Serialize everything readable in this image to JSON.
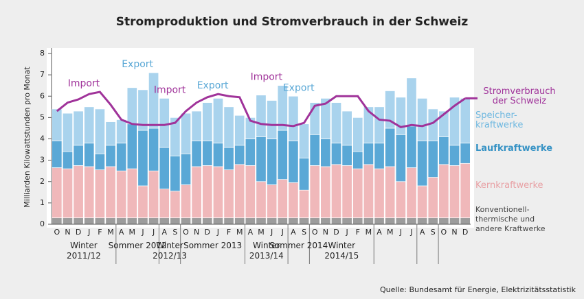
{
  "chart_data": {
    "type": "bar",
    "stacked": true,
    "title": "Stromproduktion und Stromverbrauch in der Schweiz",
    "y_label": "Milliarden Kilowattstunden pro Monat",
    "source": "Quelle: Bundesamt für Energie, Elektrizitätsstatistik",
    "ylim": [
      0,
      8
    ],
    "yticks": [
      0,
      1,
      2,
      3,
      4,
      5,
      6,
      7,
      8
    ],
    "categories": [
      "O",
      "N",
      "D",
      "J",
      "F",
      "M",
      "A",
      "M",
      "J",
      "J",
      "A",
      "S",
      "O",
      "N",
      "D",
      "J",
      "F",
      "M",
      "A",
      "M",
      "J",
      "J",
      "A",
      "S",
      "O",
      "N",
      "D",
      "J",
      "F",
      "M",
      "A",
      "M",
      "J",
      "J",
      "A",
      "S",
      "O",
      "N",
      "D"
    ],
    "groups": [
      "Winter 2011/12",
      "Sommer 2012",
      "Winter 2012/13",
      "Sommer 2013",
      "Winter 2013/14",
      "Sommer 2014",
      "Winter 2014/15"
    ],
    "annotations": [
      "Import",
      "Export",
      "Import",
      "Export",
      "Import",
      "Export"
    ],
    "series": [
      {
        "name": "Konventionell-thermische und andere Kraftwerke",
        "color": "#9c9c9c",
        "values": [
          0.3,
          0.3,
          0.3,
          0.3,
          0.3,
          0.3,
          0.3,
          0.3,
          0.3,
          0.3,
          0.3,
          0.3,
          0.3,
          0.3,
          0.3,
          0.3,
          0.3,
          0.3,
          0.3,
          0.3,
          0.3,
          0.3,
          0.3,
          0.3,
          0.3,
          0.3,
          0.3,
          0.3,
          0.3,
          0.3,
          0.3,
          0.3,
          0.3,
          0.3,
          0.3,
          0.3,
          0.3,
          0.3,
          0.3
        ]
      },
      {
        "name": "Kernkraftwerke",
        "color": "#f0b8ba",
        "values": [
          2.35,
          2.3,
          2.45,
          2.4,
          2.25,
          2.4,
          2.2,
          2.3,
          1.5,
          2.2,
          1.35,
          1.25,
          1.55,
          2.4,
          2.45,
          2.4,
          2.25,
          2.5,
          2.45,
          1.7,
          1.55,
          1.8,
          1.65,
          1.3,
          2.45,
          2.4,
          2.5,
          2.45,
          2.3,
          2.5,
          2.3,
          2.4,
          1.7,
          2.35,
          1.5,
          1.9,
          2.5,
          2.45,
          2.55
        ]
      },
      {
        "name": "Laufkraftwerke",
        "color": "#5aa8d6",
        "values": [
          1.25,
          0.8,
          0.95,
          1.1,
          0.75,
          1.0,
          1.3,
          2.1,
          2.6,
          2.0,
          1.95,
          1.65,
          1.45,
          1.2,
          1.15,
          1.1,
          1.05,
          0.9,
          1.25,
          2.1,
          2.15,
          2.3,
          1.95,
          1.5,
          1.45,
          1.3,
          1.0,
          0.95,
          0.8,
          1.0,
          1.2,
          1.8,
          2.2,
          1.95,
          2.1,
          1.7,
          1.3,
          0.95,
          0.95
        ]
      },
      {
        "name": "Speicher-kraftwerke",
        "color": "#a9d3ed",
        "values": [
          1.5,
          1.8,
          1.6,
          1.7,
          2.1,
          1.1,
          1.1,
          1.7,
          1.9,
          2.6,
          2.3,
          1.8,
          1.9,
          1.4,
          1.8,
          2.1,
          1.9,
          1.4,
          1.0,
          1.95,
          1.8,
          2.1,
          2.1,
          1.6,
          1.5,
          1.9,
          1.9,
          1.6,
          1.6,
          1.7,
          1.7,
          1.75,
          1.75,
          2.25,
          2.0,
          1.5,
          1.2,
          2.25,
          2.1
        ]
      }
    ],
    "line_series": {
      "name": "Stromverbrauch der Schweiz",
      "color": "#a0339a",
      "values": [
        5.3,
        5.7,
        5.85,
        6.1,
        6.2,
        5.6,
        4.9,
        4.7,
        4.65,
        4.65,
        4.65,
        4.75,
        5.3,
        5.7,
        5.95,
        6.1,
        6.0,
        5.95,
        4.85,
        4.7,
        4.65,
        4.65,
        4.6,
        4.75,
        5.55,
        5.65,
        6.0,
        6.0,
        6.0,
        5.3,
        4.9,
        4.85,
        4.55,
        4.65,
        4.6,
        4.75,
        5.15,
        5.55,
        5.9
      ]
    }
  }
}
